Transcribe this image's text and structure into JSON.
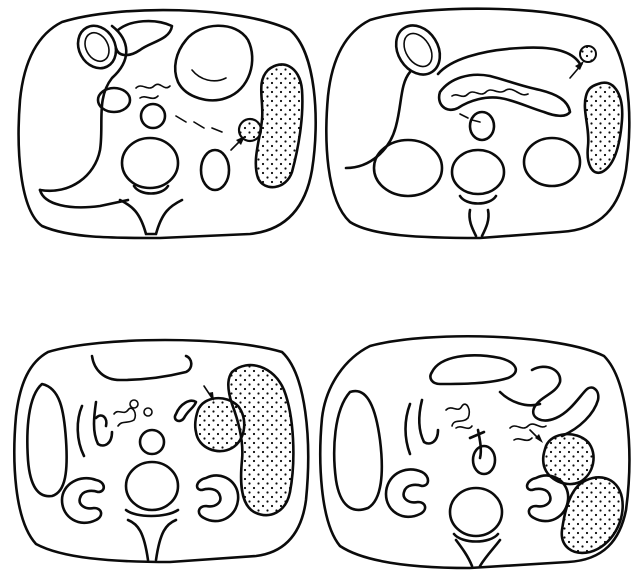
{
  "figure": {
    "panels": [
      {
        "id": "top-left",
        "has_stippled_mass": true,
        "has_arrow": true
      },
      {
        "id": "top-right",
        "has_stippled_mass": true,
        "has_arrow": true
      },
      {
        "id": "bottom-left",
        "has_stippled_mass": true,
        "has_arrow": true
      },
      {
        "id": "bottom-right",
        "has_stippled_mass": true,
        "has_arrow": true
      }
    ],
    "colors": {
      "ink": "#0b0b0b",
      "background": "#ffffff"
    }
  }
}
